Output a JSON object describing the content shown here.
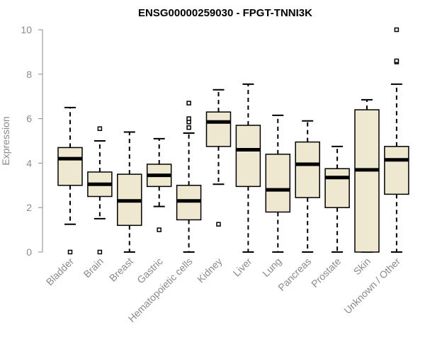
{
  "chart_data": {
    "type": "boxplot",
    "title": "ENSG00000259030 - FPGT-TNNI3K",
    "xlabel": "",
    "ylabel": "Expression",
    "ylim": [
      0,
      10
    ],
    "yticks": [
      0,
      2,
      4,
      6,
      8,
      10
    ],
    "grid": false,
    "colors": {
      "box_fill": "#efe8d0",
      "stroke": "#000000",
      "axis": "#8a8a8a"
    },
    "categories": [
      "Bladder",
      "Brain",
      "Breast",
      "Gastric",
      "Hematopoietic cells",
      "Kidney",
      "Liver",
      "Lung",
      "Pancreas",
      "Prostate",
      "Skin",
      "Unknown / Other"
    ],
    "boxes": [
      {
        "category": "Bladder",
        "whisker_low": 1.25,
        "q1": 3.0,
        "median": 4.2,
        "q3": 4.7,
        "whisker_high": 6.5,
        "outliers": [
          0.0
        ]
      },
      {
        "category": "Brain",
        "whisker_low": 1.5,
        "q1": 2.5,
        "median": 3.05,
        "q3": 3.6,
        "whisker_high": 5.0,
        "outliers": [
          0.0,
          5.55
        ]
      },
      {
        "category": "Breast",
        "whisker_low": 0.0,
        "q1": 1.2,
        "median": 2.3,
        "q3": 3.5,
        "whisker_high": 5.4,
        "outliers": []
      },
      {
        "category": "Gastric",
        "whisker_low": 2.05,
        "q1": 2.95,
        "median": 3.45,
        "q3": 3.95,
        "whisker_high": 5.1,
        "outliers": [
          1.0
        ]
      },
      {
        "category": "Hematopoietic cells",
        "whisker_low": 0.0,
        "q1": 1.45,
        "median": 2.3,
        "q3": 3.0,
        "whisker_high": 5.35,
        "outliers": [
          5.6,
          5.85,
          6.0,
          6.7
        ]
      },
      {
        "category": "Kidney",
        "whisker_low": 3.05,
        "q1": 4.75,
        "median": 5.85,
        "q3": 6.3,
        "whisker_high": 7.3,
        "outliers": [
          1.25
        ]
      },
      {
        "category": "Liver",
        "whisker_low": 0.0,
        "q1": 2.95,
        "median": 4.6,
        "q3": 5.7,
        "whisker_high": 7.55,
        "outliers": []
      },
      {
        "category": "Lung",
        "whisker_low": 0.0,
        "q1": 1.8,
        "median": 2.8,
        "q3": 4.4,
        "whisker_high": 6.15,
        "outliers": []
      },
      {
        "category": "Pancreas",
        "whisker_low": 0.0,
        "q1": 2.45,
        "median": 3.95,
        "q3": 4.95,
        "whisker_high": 5.9,
        "outliers": []
      },
      {
        "category": "Prostate",
        "whisker_low": 0.0,
        "q1": 2.0,
        "median": 3.35,
        "q3": 3.75,
        "whisker_high": 4.75,
        "outliers": []
      },
      {
        "category": "Skin",
        "whisker_low": 0.0,
        "q1": 0.0,
        "median": 3.7,
        "q3": 6.4,
        "whisker_high": 6.85,
        "outliers": []
      },
      {
        "category": "Unknown / Other",
        "whisker_low": 0.0,
        "q1": 2.6,
        "median": 4.15,
        "q3": 4.75,
        "whisker_high": 7.55,
        "outliers": [
          8.55,
          8.6,
          10.0
        ]
      }
    ]
  }
}
